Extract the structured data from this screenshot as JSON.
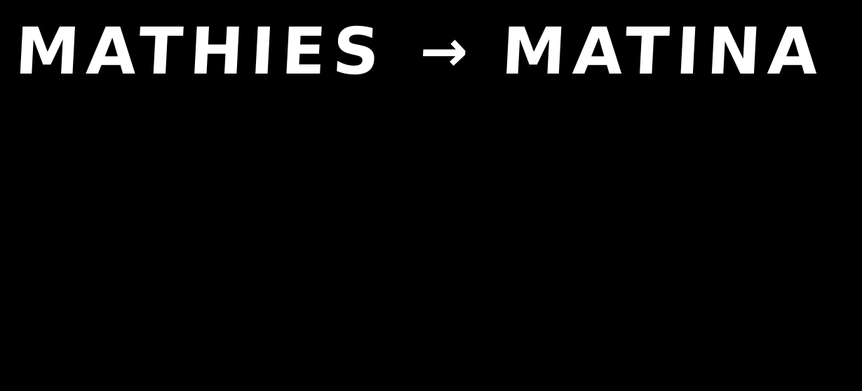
{
  "note": {
    "from_word": "MATHIES",
    "arrow": "→",
    "to_word": "MATINA"
  },
  "colors": {
    "background": "#000000",
    "ink": "#ffffff"
  }
}
